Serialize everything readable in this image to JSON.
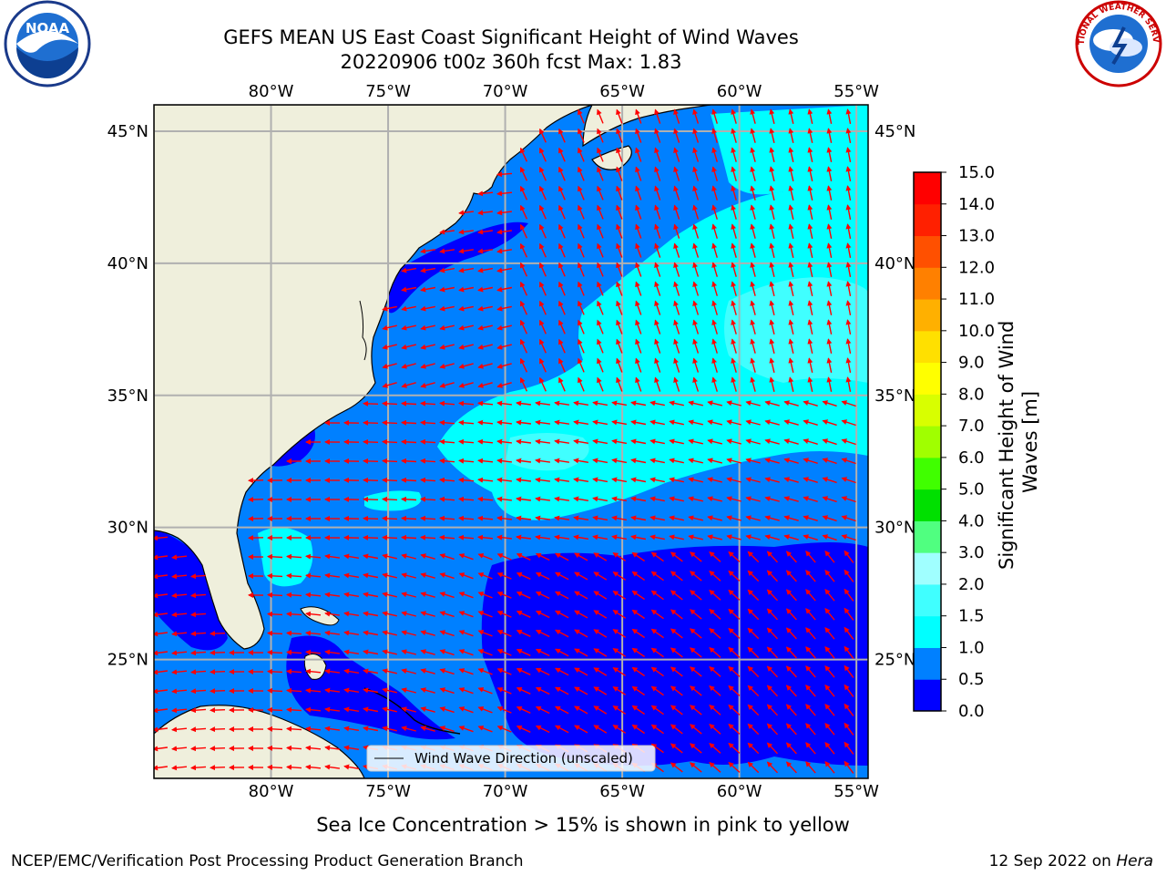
{
  "title": {
    "line1": "GEFS MEAN US East Coast Significant Height of Wind Waves",
    "line2": "20220906 t00z 360h fcst   Max: 1.83"
  },
  "logos": {
    "noaa": "NOAA",
    "nws": "NATIONAL WEATHER SERVICE"
  },
  "map": {
    "lon_labels": [
      "80°W",
      "75°W",
      "70°W",
      "65°W",
      "60°W",
      "55°W"
    ],
    "lat_labels": [
      "45°N",
      "40°N",
      "35°N",
      "30°N",
      "25°N"
    ],
    "lon_values": [
      -80,
      -75,
      -70,
      -65,
      -60,
      -55
    ],
    "lat_values": [
      45,
      40,
      35,
      30,
      25
    ],
    "lon_range": [
      -85,
      -54.5
    ],
    "lat_range": [
      20.5,
      46
    ],
    "ocean_color": "#0080ff",
    "land_color": "#efefdc",
    "arrow_color": "#ff0000"
  },
  "legend": {
    "label": "Wind Wave Direction (unscaled)"
  },
  "colorbar": {
    "label": "Significant Height of Wind Waves [m]",
    "tick_labels": [
      "0.0",
      "0.5",
      "1.0",
      "1.5",
      "2.0",
      "3.0",
      "4.0",
      "5.0",
      "6.0",
      "7.0",
      "8.0",
      "9.0",
      "10.0",
      "11.0",
      "12.0",
      "13.0",
      "14.0",
      "15.0"
    ],
    "colors": [
      "#0000ff",
      "#0080ff",
      "#00ffff",
      "#40ffff",
      "#a0ffff",
      "#50ff80",
      "#00e000",
      "#40ff00",
      "#a0ff00",
      "#d8ff00",
      "#ffff00",
      "#ffe000",
      "#ffb000",
      "#ff8000",
      "#ff5000",
      "#ff2000",
      "#ff0000"
    ]
  },
  "footer": {
    "sea_ice_note": "Sea Ice Concentration > 15% is shown in pink to yellow",
    "branch": "NCEP/EMC/Verification Post Processing Product Generation Branch",
    "date_prefix": "12 Sep 2022 on ",
    "machine": "Hera"
  }
}
